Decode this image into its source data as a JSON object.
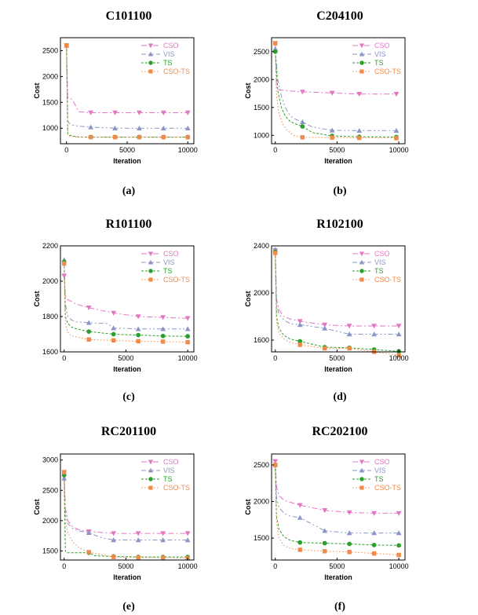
{
  "colors": {
    "CSO": "#e377c2",
    "VIS": "#8c96c6",
    "TS": "#2ca02c",
    "CSO-TS": "#f08a4b"
  },
  "legend_markers": {
    "CSO": "triangle-down",
    "VIS": "triangle-up",
    "TS": "circle",
    "CSO-TS": "square"
  },
  "chart_data": [
    {
      "type": "line",
      "title": "C101100",
      "caption": "(a)",
      "xlabel": "Iteration",
      "ylabel": "Cost",
      "xlim": [
        -500,
        10500
      ],
      "ylim": [
        700,
        2750
      ],
      "xticks": [
        0,
        5000,
        10000
      ],
      "yticks": [
        1000,
        1500,
        2000,
        2500
      ],
      "series": [
        {
          "name": "CSO",
          "x": [
            0,
            100,
            200,
            500,
            1000,
            2000,
            4000,
            6000,
            8000,
            10000
          ],
          "y": [
            2600,
            1600,
            1580,
            1550,
            1320,
            1300,
            1300,
            1300,
            1300,
            1300
          ],
          "markers_x": [
            0,
            2000,
            4000,
            6000,
            8000,
            10000
          ]
        },
        {
          "name": "VIS",
          "x": [
            0,
            100,
            200,
            500,
            1000,
            2000,
            4000,
            6000,
            8000,
            10000
          ],
          "y": [
            2600,
            1150,
            1100,
            1060,
            1040,
            1020,
            1000,
            1000,
            1000,
            1000
          ],
          "markers_x": [
            0,
            2000,
            4000,
            6000,
            8000,
            10000
          ]
        },
        {
          "name": "TS",
          "x": [
            0,
            100,
            200,
            500,
            1000,
            2000,
            4000,
            6000,
            8000,
            10000
          ],
          "y": [
            2600,
            900,
            870,
            850,
            830,
            828,
            828,
            828,
            828,
            828
          ],
          "markers_x": [
            0,
            2000,
            4000,
            6000,
            8000,
            10000
          ]
        },
        {
          "name": "CSO-TS",
          "x": [
            0,
            100,
            200,
            500,
            1000,
            2000,
            4000,
            6000,
            8000,
            10000
          ],
          "y": [
            2600,
            880,
            850,
            835,
            828,
            828,
            828,
            828,
            828,
            828
          ],
          "markers_x": [
            0,
            2000,
            4000,
            6000,
            8000,
            10000
          ]
        }
      ]
    },
    {
      "type": "line",
      "title": "C204100",
      "caption": "(b)",
      "xlabel": "Iteration",
      "ylabel": "Cost",
      "xlim": [
        -300,
        10500
      ],
      "ylim": [
        850,
        2750
      ],
      "xticks": [
        0,
        5000,
        10000
      ],
      "yticks": [
        1000,
        1500,
        2000,
        2500
      ],
      "series": [
        {
          "name": "CSO",
          "x": [
            0,
            100,
            200,
            500,
            1000,
            2200,
            4600,
            6800,
            9800
          ],
          "y": [
            2650,
            1850,
            1820,
            1810,
            1800,
            1780,
            1760,
            1740,
            1740
          ],
          "markers_x": [
            0,
            2200,
            4600,
            6800,
            9800
          ]
        },
        {
          "name": "VIS",
          "x": [
            0,
            200,
            500,
            800,
            1200,
            1700,
            2200,
            3000,
            4600,
            6800,
            9800
          ],
          "y": [
            2550,
            2000,
            1700,
            1500,
            1350,
            1280,
            1240,
            1150,
            1090,
            1085,
            1085
          ],
          "markers_x": [
            0,
            2200,
            4600,
            6800,
            9800
          ]
        },
        {
          "name": "TS",
          "x": [
            0,
            200,
            500,
            800,
            1200,
            1700,
            2200,
            3000,
            4600,
            6800,
            9800
          ],
          "y": [
            2500,
            1800,
            1500,
            1350,
            1250,
            1200,
            1160,
            1050,
            990,
            975,
            970
          ],
          "markers_x": [
            0,
            2200,
            4600,
            6800,
            9800
          ]
        },
        {
          "name": "CSO-TS",
          "x": [
            0,
            100,
            300,
            600,
            1000,
            1500,
            2200,
            4600,
            6800,
            9800
          ],
          "y": [
            2650,
            1700,
            1400,
            1200,
            1080,
            1000,
            965,
            960,
            955,
            950
          ],
          "markers_x": [
            0,
            2200,
            4600,
            6800,
            9800
          ]
        }
      ]
    },
    {
      "type": "line",
      "title": "R101100",
      "caption": "(c)",
      "xlabel": "Iteration",
      "ylabel": "Cost",
      "xlim": [
        -300,
        10500
      ],
      "ylim": [
        1600,
        2200
      ],
      "xticks": [
        0,
        5000,
        10000
      ],
      "yticks": [
        1600,
        1800,
        2000,
        2200
      ],
      "series": [
        {
          "name": "CSO",
          "x": [
            0,
            100,
            300,
            600,
            1000,
            2000,
            4000,
            6000,
            8000,
            10000
          ],
          "y": [
            2030,
            1920,
            1895,
            1885,
            1870,
            1850,
            1820,
            1800,
            1795,
            1790
          ],
          "markers_x": [
            0,
            2000,
            4000,
            6000,
            8000,
            10000
          ]
        },
        {
          "name": "VIS",
          "x": [
            0,
            100,
            300,
            600,
            1000,
            2000,
            3500,
            4000,
            6000,
            8000,
            10000
          ],
          "y": [
            2120,
            1870,
            1800,
            1780,
            1770,
            1765,
            1760,
            1735,
            1730,
            1730,
            1730
          ],
          "markers_x": [
            0,
            2000,
            4000,
            6000,
            8000,
            10000
          ]
        },
        {
          "name": "TS",
          "x": [
            0,
            100,
            300,
            600,
            1000,
            2000,
            4000,
            6000,
            8000,
            10000
          ],
          "y": [
            2110,
            1800,
            1760,
            1740,
            1730,
            1715,
            1700,
            1695,
            1690,
            1688
          ],
          "markers_x": [
            0,
            2000,
            4000,
            6000,
            8000,
            10000
          ]
        },
        {
          "name": "CSO-TS",
          "x": [
            0,
            100,
            300,
            600,
            1000,
            2000,
            4000,
            6000,
            8000,
            10000
          ],
          "y": [
            2100,
            1760,
            1710,
            1690,
            1685,
            1670,
            1665,
            1660,
            1658,
            1655
          ],
          "markers_x": [
            0,
            2000,
            4000,
            6000,
            8000,
            10000
          ]
        }
      ]
    },
    {
      "type": "line",
      "title": "R102100",
      "caption": "(d)",
      "xlabel": "Iteration",
      "ylabel": "Cost",
      "xlim": [
        -300,
        10500
      ],
      "ylim": [
        1500,
        2400
      ],
      "xticks": [
        0,
        5000,
        10000
      ],
      "yticks": [
        1600,
        2000,
        2400
      ],
      "series": [
        {
          "name": "CSO",
          "x": [
            0,
            100,
            300,
            700,
            1200,
            2000,
            4000,
            6000,
            8000,
            10000
          ],
          "y": [
            2360,
            1950,
            1860,
            1800,
            1780,
            1760,
            1730,
            1720,
            1720,
            1720
          ],
          "markers_x": [
            0,
            2000,
            4000,
            6000,
            8000,
            10000
          ]
        },
        {
          "name": "VIS",
          "x": [
            0,
            100,
            300,
            700,
            1200,
            2000,
            4000,
            6000,
            8000,
            10000
          ],
          "y": [
            2370,
            1900,
            1820,
            1770,
            1740,
            1730,
            1700,
            1650,
            1650,
            1650
          ],
          "markers_x": [
            0,
            2000,
            4000,
            6000,
            8000,
            10000
          ]
        },
        {
          "name": "TS",
          "x": [
            0,
            100,
            300,
            700,
            1200,
            2000,
            4000,
            6000,
            8000,
            10000
          ],
          "y": [
            2350,
            1800,
            1700,
            1640,
            1610,
            1590,
            1540,
            1535,
            1520,
            1505
          ],
          "markers_x": [
            0,
            2000,
            4000,
            6000,
            8000,
            10000
          ]
        },
        {
          "name": "CSO-TS",
          "x": [
            0,
            100,
            300,
            700,
            1200,
            2000,
            4000,
            6000,
            8000,
            10000
          ],
          "y": [
            2340,
            1750,
            1660,
            1610,
            1580,
            1560,
            1530,
            1530,
            1500,
            1470
          ],
          "markers_x": [
            0,
            2000,
            4000,
            6000,
            8000,
            10000
          ]
        }
      ]
    },
    {
      "type": "line",
      "title": "RC201100",
      "caption": "(e)",
      "xlabel": "Iteration",
      "ylabel": "Cost",
      "xlim": [
        -300,
        10500
      ],
      "ylim": [
        1350,
        3100
      ],
      "xticks": [
        0,
        5000,
        10000
      ],
      "yticks": [
        1500,
        2000,
        2500,
        3000
      ],
      "series": [
        {
          "name": "CSO",
          "x": [
            0,
            100,
            300,
            700,
            1200,
            2000,
            4000,
            6000,
            8000,
            10000
          ],
          "y": [
            2800,
            2200,
            2000,
            1900,
            1850,
            1820,
            1790,
            1790,
            1790,
            1790
          ],
          "markers_x": [
            0,
            2000,
            4000,
            6000,
            8000,
            10000
          ]
        },
        {
          "name": "VIS",
          "x": [
            0,
            100,
            300,
            700,
            1200,
            2000,
            3000,
            4000,
            6000,
            8000,
            10000
          ],
          "y": [
            2700,
            2100,
            1950,
            1870,
            1830,
            1800,
            1720,
            1680,
            1680,
            1680,
            1680
          ],
          "markers_x": [
            0,
            2000,
            4000,
            6000,
            8000,
            10000
          ]
        },
        {
          "name": "TS",
          "x": [
            0,
            100,
            200,
            2000,
            2500,
            4000,
            6000,
            8000,
            10000
          ],
          "y": [
            2750,
            1500,
            1470,
            1470,
            1420,
            1410,
            1400,
            1400,
            1400
          ],
          "markers_x": [
            0,
            2000,
            4000,
            6000,
            8000,
            10000
          ]
        },
        {
          "name": "CSO-TS",
          "x": [
            0,
            100,
            300,
            700,
            1200,
            2000,
            4000,
            6000,
            8000,
            10000
          ],
          "y": [
            2800,
            2000,
            1800,
            1650,
            1550,
            1480,
            1400,
            1390,
            1390,
            1380
          ],
          "markers_x": [
            0,
            2000,
            4000,
            6000,
            8000,
            10000
          ]
        }
      ]
    },
    {
      "type": "line",
      "title": "RC202100",
      "caption": "(f)",
      "xlabel": "Iteration",
      "ylabel": "Cost",
      "xlim": [
        -300,
        10500
      ],
      "ylim": [
        1200,
        2650
      ],
      "xticks": [
        0,
        5000,
        10000
      ],
      "yticks": [
        1500,
        2000,
        2500
      ],
      "series": [
        {
          "name": "CSO",
          "x": [
            0,
            100,
            300,
            700,
            1200,
            2000,
            4000,
            6000,
            8000,
            10000
          ],
          "y": [
            2550,
            2200,
            2080,
            2020,
            1990,
            1950,
            1880,
            1850,
            1840,
            1840
          ],
          "markers_x": [
            0,
            2000,
            4000,
            6000,
            8000,
            10000
          ]
        },
        {
          "name": "VIS",
          "x": [
            0,
            100,
            300,
            700,
            1200,
            2000,
            4000,
            6000,
            8000,
            10000
          ],
          "y": [
            2500,
            2050,
            1920,
            1840,
            1800,
            1780,
            1600,
            1570,
            1570,
            1570
          ],
          "markers_x": [
            0,
            2000,
            4000,
            6000,
            8000,
            10000
          ]
        },
        {
          "name": "TS",
          "x": [
            0,
            100,
            300,
            700,
            1200,
            2000,
            4000,
            6000,
            8000,
            10000
          ],
          "y": [
            2500,
            1800,
            1620,
            1520,
            1470,
            1440,
            1430,
            1420,
            1405,
            1400
          ],
          "markers_x": [
            0,
            2000,
            4000,
            6000,
            8000,
            10000
          ]
        },
        {
          "name": "CSO-TS",
          "x": [
            0,
            100,
            300,
            700,
            1200,
            2000,
            4000,
            6000,
            8000,
            10000
          ],
          "y": [
            2500,
            1700,
            1500,
            1400,
            1360,
            1340,
            1320,
            1310,
            1290,
            1270
          ],
          "markers_x": [
            0,
            2000,
            4000,
            6000,
            8000,
            10000
          ]
        }
      ]
    }
  ]
}
